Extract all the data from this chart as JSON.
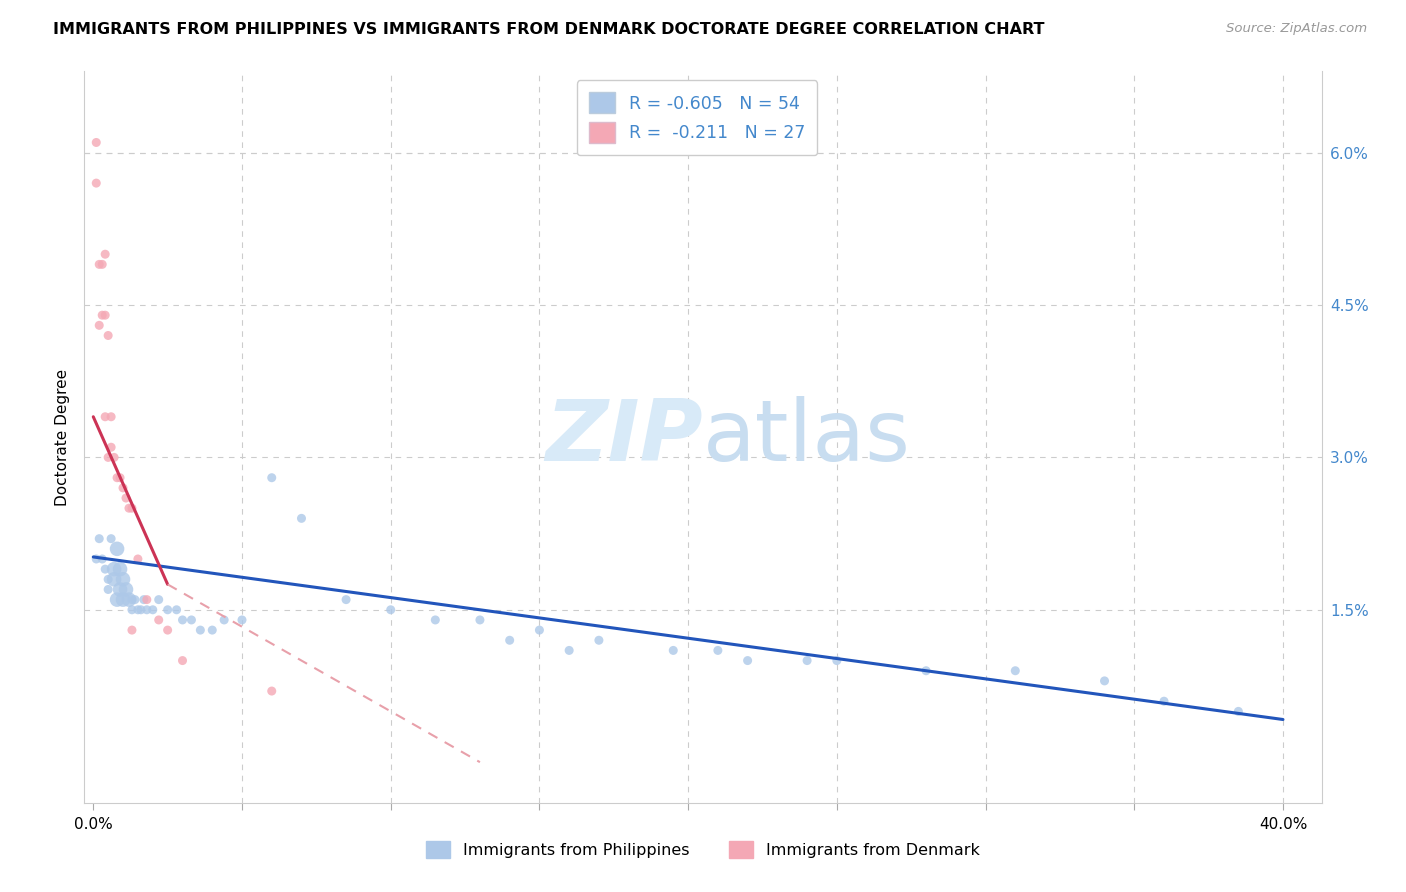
{
  "title": "IMMIGRANTS FROM PHILIPPINES VS IMMIGRANTS FROM DENMARK DOCTORATE DEGREE CORRELATION CHART",
  "source": "Source: ZipAtlas.com",
  "xlabel_philippines": "Immigrants from Philippines",
  "xlabel_denmark": "Immigrants from Denmark",
  "ylabel": "Doctorate Degree",
  "xlim": [
    -0.003,
    0.413
  ],
  "ylim": [
    -0.004,
    0.068
  ],
  "xtick_positions": [
    0.0,
    0.05,
    0.1,
    0.15,
    0.2,
    0.25,
    0.3,
    0.35,
    0.4
  ],
  "xtick_labels": [
    "0.0%",
    "",
    "",
    "",
    "",
    "",
    "",
    "",
    "40.0%"
  ],
  "yticks_right": [
    0.015,
    0.03,
    0.045,
    0.06
  ],
  "ytick_labels_right": [
    "1.5%",
    "3.0%",
    "4.5%",
    "6.0%"
  ],
  "philippines_color": "#adc8e8",
  "denmark_color": "#f4a8b5",
  "philippines_line_color": "#2255bb",
  "denmark_line_color": "#cc3355",
  "denmark_line_dashed_color": "#e8a0aa",
  "legend_R_philippines": "-0.605",
  "legend_N_philippines": "54",
  "legend_R_denmark": "-0.211",
  "legend_N_denmark": "27",
  "watermark_color": "#d8eaf8",
  "grid_color": "#cccccc",
  "right_axis_color": "#4488cc",
  "phil_x": [
    0.001,
    0.002,
    0.003,
    0.004,
    0.005,
    0.005,
    0.006,
    0.007,
    0.007,
    0.008,
    0.008,
    0.009,
    0.009,
    0.01,
    0.01,
    0.011,
    0.012,
    0.013,
    0.013,
    0.014,
    0.015,
    0.016,
    0.017,
    0.018,
    0.02,
    0.022,
    0.025,
    0.028,
    0.03,
    0.033,
    0.036,
    0.04,
    0.044,
    0.05,
    0.06,
    0.07,
    0.085,
    0.1,
    0.115,
    0.13,
    0.15,
    0.17,
    0.195,
    0.22,
    0.25,
    0.28,
    0.31,
    0.34,
    0.36,
    0.385,
    0.14,
    0.16,
    0.21,
    0.24
  ],
  "phil_y": [
    0.02,
    0.022,
    0.02,
    0.019,
    0.018,
    0.017,
    0.022,
    0.019,
    0.018,
    0.021,
    0.016,
    0.019,
    0.017,
    0.016,
    0.018,
    0.017,
    0.016,
    0.016,
    0.015,
    0.016,
    0.015,
    0.015,
    0.016,
    0.015,
    0.015,
    0.016,
    0.015,
    0.015,
    0.014,
    0.014,
    0.013,
    0.013,
    0.014,
    0.014,
    0.028,
    0.024,
    0.016,
    0.015,
    0.014,
    0.014,
    0.013,
    0.012,
    0.011,
    0.01,
    0.01,
    0.009,
    0.009,
    0.008,
    0.006,
    0.005,
    0.012,
    0.011,
    0.011,
    0.01
  ],
  "phil_size": [
    35,
    35,
    35,
    35,
    35,
    35,
    35,
    35,
    35,
    35,
    35,
    35,
    35,
    35,
    35,
    35,
    35,
    35,
    35,
    35,
    35,
    35,
    35,
    35,
    35,
    35,
    35,
    35,
    35,
    35,
    35,
    35,
    35,
    35,
    35,
    35,
    35,
    35,
    35,
    35,
    35,
    35,
    35,
    35,
    35,
    35,
    35,
    35,
    35,
    35,
    35,
    35,
    35,
    35
  ],
  "den_x": [
    0.001,
    0.001,
    0.002,
    0.002,
    0.003,
    0.003,
    0.004,
    0.004,
    0.004,
    0.005,
    0.005,
    0.006,
    0.006,
    0.007,
    0.008,
    0.009,
    0.01,
    0.011,
    0.012,
    0.013,
    0.015,
    0.018,
    0.022,
    0.025,
    0.03,
    0.06,
    0.013
  ],
  "den_y": [
    0.061,
    0.057,
    0.049,
    0.043,
    0.049,
    0.044,
    0.044,
    0.05,
    0.034,
    0.042,
    0.03,
    0.034,
    0.031,
    0.03,
    0.028,
    0.028,
    0.027,
    0.026,
    0.025,
    0.025,
    0.02,
    0.016,
    0.014,
    0.013,
    0.01,
    0.007,
    0.013
  ],
  "phil_line_x0": 0.0,
  "phil_line_y0": 0.0202,
  "phil_line_x1": 0.4,
  "phil_line_y1": 0.0042,
  "den_line_solid_x0": 0.0,
  "den_line_solid_y0": 0.034,
  "den_line_solid_x1": 0.025,
  "den_line_solid_y1": 0.0175,
  "den_line_dashed_x0": 0.025,
  "den_line_dashed_y0": 0.0175,
  "den_line_dashed_x1": 0.13,
  "den_line_dashed_y1": 0.0
}
